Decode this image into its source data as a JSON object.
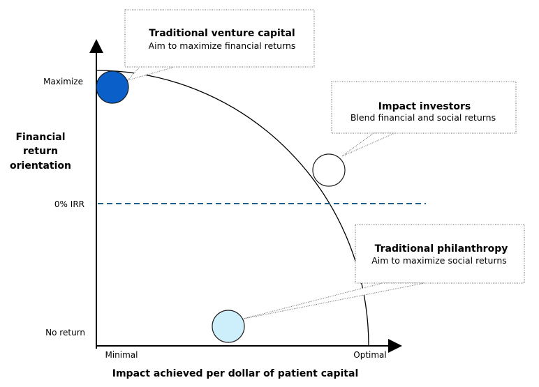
{
  "colors": {
    "venture": "#0a5fc8",
    "impact": "#ffffff",
    "philanthropy": "#cdeefb",
    "irr_line": "#1f5f8b",
    "callout_border": "#666666"
  },
  "y_axis": {
    "title_lines": [
      "Financial",
      "return",
      "orientation"
    ],
    "tick_top": "Maximize",
    "tick_mid": "0% IRR",
    "tick_bottom": "No return"
  },
  "x_axis": {
    "title": "Impact achieved per dollar of patient capital",
    "tick_left": "Minimal",
    "tick_right": "Optimal"
  },
  "callouts": {
    "venture": {
      "title": "Traditional venture capital",
      "subtitle": "Aim to maximize financial returns"
    },
    "impact": {
      "title": "Impact investors",
      "subtitle": "Blend financial and social returns"
    },
    "philanthropy": {
      "title": "Traditional philanthropy",
      "subtitle": "Aim to maximize social returns"
    }
  }
}
